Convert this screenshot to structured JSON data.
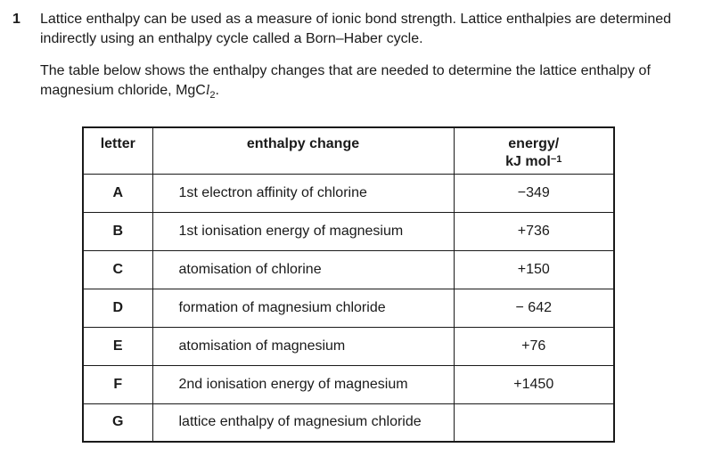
{
  "page": {
    "background_color": "#ffffff",
    "text_color": "#1a1a1a"
  },
  "question": {
    "number": "1",
    "paragraph1_line1": "Lattice enthalpy can be used as a measure of ionic bond strength. Lattice enthalpies are determined",
    "paragraph1_line2": "indirectly using an enthalpy cycle called a Born–Haber cycle.",
    "paragraph2_line1": "The table below shows the enthalpy changes that are needed to determine the lattice enthalpy of",
    "paragraph2_line2_prefix": "magnesium chloride, MgC",
    "paragraph2_chlorine_italic_l": "l",
    "paragraph2_formula_subscript": "2",
    "paragraph2_line2_suffix": "."
  },
  "table": {
    "headers": {
      "letter": "letter",
      "enthalpy_change": "enthalpy change",
      "energy_line1": "energy/",
      "energy_unit": "kJ mol",
      "energy_superscript": "−1"
    },
    "rows": [
      {
        "letter": "A",
        "enthalpy_change": "1st electron affinity of chlorine",
        "energy": "−349"
      },
      {
        "letter": "B",
        "enthalpy_change": "1st ionisation energy of magnesium",
        "energy": "+736"
      },
      {
        "letter": "C",
        "enthalpy_change": "atomisation of chlorine",
        "energy": "+150"
      },
      {
        "letter": "D",
        "enthalpy_change": "formation of magnesium chloride",
        "energy": "− 642"
      },
      {
        "letter": "E",
        "enthalpy_change": "atomisation of magnesium",
        "energy": "+76"
      },
      {
        "letter": "F",
        "enthalpy_change": "2nd ionisation energy of magnesium",
        "energy": "+1450"
      },
      {
        "letter": "G",
        "enthalpy_change": "lattice enthalpy of magnesium chloride",
        "energy": ""
      }
    ]
  }
}
